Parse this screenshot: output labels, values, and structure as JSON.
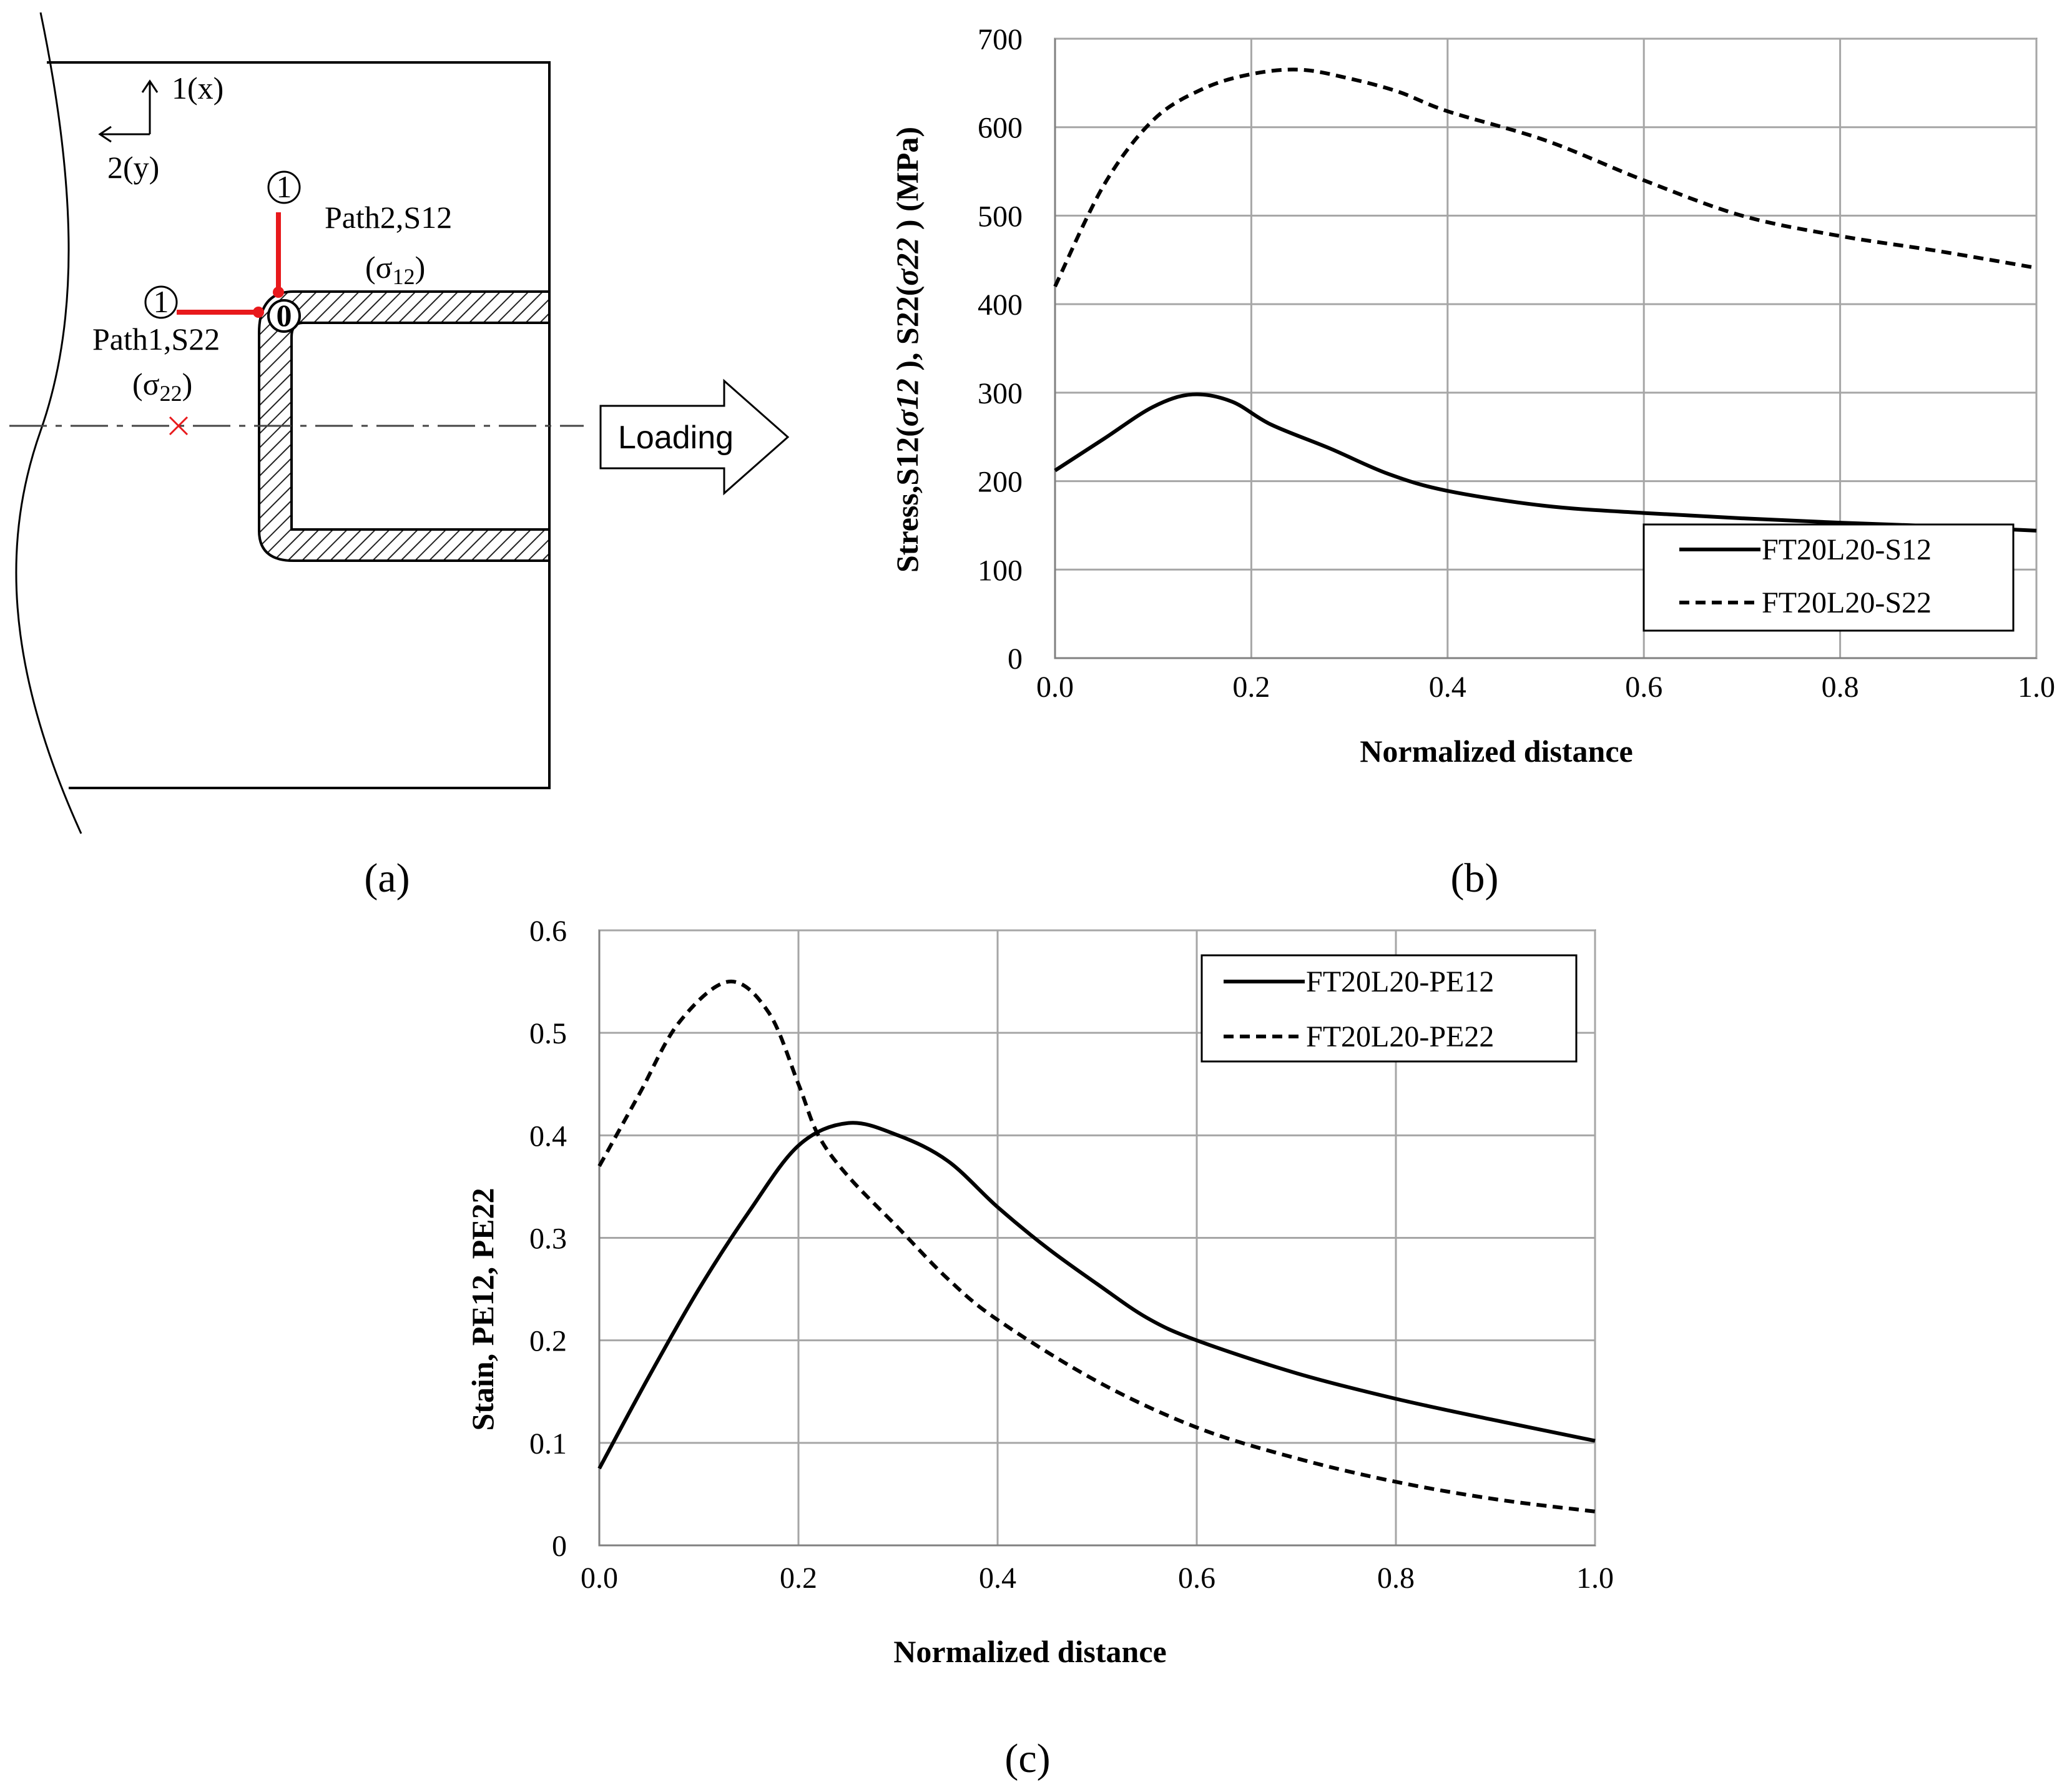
{
  "panel_a": {
    "label": "(a)",
    "axis_x_label": "1(x)",
    "axis_y_label": "2(y)",
    "node_one": "1",
    "node_zero": "0",
    "path2_label": "Path2,S12",
    "path2_sigma": "σ",
    "path2_sub": "12",
    "path1_label": "Path1,S22",
    "path1_sigma": "σ",
    "path1_sub": "22",
    "loading_label": "Loading",
    "path_color": "#e8191c"
  },
  "chart_data": [
    {
      "panel": "(b)",
      "type": "line",
      "title": "",
      "xlabel": "Normalized distance",
      "ylabel_parts": [
        "Stress,S12(",
        "σ12",
        " ), S22(",
        "σ22",
        " ) (MPa)"
      ],
      "xlim": [
        0,
        1.0
      ],
      "ylim": [
        0,
        700
      ],
      "x_ticks": [
        "0.0",
        "0.2",
        "0.4",
        "0.6",
        "0.8",
        "1.0"
      ],
      "y_ticks": [
        "0",
        "100",
        "200",
        "300",
        "400",
        "500",
        "600",
        "700"
      ],
      "grid": true,
      "legend_position": "bottom-right",
      "series": [
        {
          "name": "FT20L20-S12",
          "style": "solid",
          "x": [
            0.0,
            0.05,
            0.1,
            0.14,
            0.18,
            0.22,
            0.28,
            0.34,
            0.4,
            0.5,
            0.6,
            0.7,
            0.8,
            0.9,
            1.0
          ],
          "y": [
            212,
            248,
            284,
            298,
            290,
            264,
            237,
            208,
            189,
            172,
            164,
            158,
            153,
            149,
            144
          ]
        },
        {
          "name": "FT20L20-S22",
          "style": "dashed",
          "x": [
            0.0,
            0.05,
            0.1,
            0.15,
            0.2,
            0.25,
            0.3,
            0.35,
            0.4,
            0.5,
            0.6,
            0.7,
            0.8,
            0.9,
            1.0
          ],
          "y": [
            420,
            535,
            608,
            643,
            660,
            665,
            655,
            640,
            618,
            585,
            540,
            500,
            477,
            460,
            441
          ]
        }
      ]
    },
    {
      "panel": "(c)",
      "type": "line",
      "title": "",
      "xlabel": "Normalized distance",
      "ylabel": "Stain, PE12, PE22",
      "xlim": [
        0,
        1.0
      ],
      "ylim": [
        0,
        0.6
      ],
      "x_ticks": [
        "0.0",
        "0.2",
        "0.4",
        "0.6",
        "0.8",
        "1.0"
      ],
      "y_ticks": [
        "0",
        "0.1",
        "0.2",
        "0.3",
        "0.4",
        "0.5",
        "0.6"
      ],
      "grid": true,
      "legend_position": "top-right",
      "series": [
        {
          "name": "FT20L20-PE12",
          "style": "solid",
          "x": [
            0.0,
            0.05,
            0.1,
            0.15,
            0.2,
            0.25,
            0.3,
            0.35,
            0.4,
            0.45,
            0.5,
            0.55,
            0.6,
            0.7,
            0.8,
            0.9,
            1.0
          ],
          "y": [
            0.075,
            0.165,
            0.25,
            0.325,
            0.39,
            0.412,
            0.4,
            0.375,
            0.33,
            0.29,
            0.255,
            0.222,
            0.2,
            0.168,
            0.143,
            0.122,
            0.102
          ]
        },
        {
          "name": "FT20L20-PE22",
          "style": "dashed",
          "x": [
            0.0,
            0.04,
            0.08,
            0.13,
            0.17,
            0.2,
            0.22,
            0.25,
            0.3,
            0.35,
            0.4,
            0.5,
            0.6,
            0.7,
            0.8,
            0.9,
            1.0
          ],
          "y": [
            0.37,
            0.44,
            0.51,
            0.55,
            0.52,
            0.45,
            0.4,
            0.36,
            0.31,
            0.26,
            0.22,
            0.16,
            0.115,
            0.085,
            0.062,
            0.045,
            0.033
          ]
        }
      ]
    }
  ]
}
